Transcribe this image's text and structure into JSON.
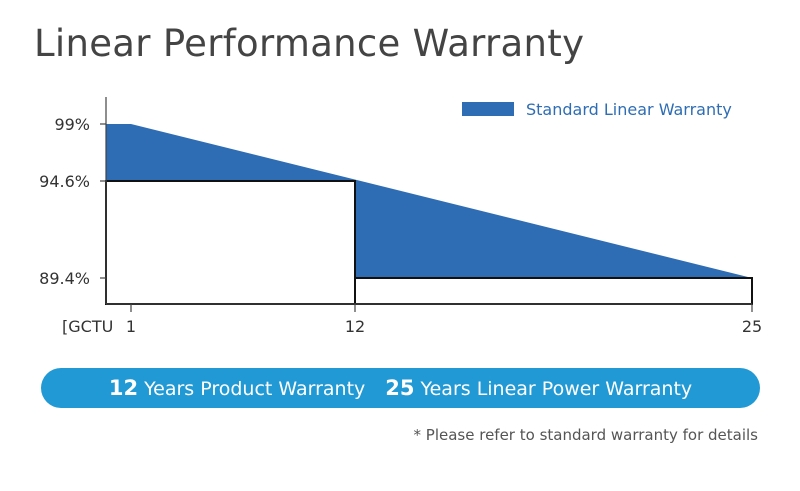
{
  "title": "Linear Performance Warranty",
  "chart_data": {
    "type": "area",
    "title": "Linear Performance Warranty",
    "series": [
      {
        "name": "Standard Linear Warranty",
        "color": "#2e6db4",
        "x": [
          0,
          1,
          25
        ],
        "y": [
          99,
          99,
          89.4
        ]
      }
    ],
    "product_warranty_box": {
      "x": [
        0,
        12
      ],
      "y_top": 94.6,
      "color": "#ffffff"
    },
    "power_warranty_box": {
      "x": [
        12,
        25
      ],
      "y_top": 89.4,
      "color": "#ffffff"
    },
    "y_ticks": [
      {
        "value": 99,
        "label": "99%"
      },
      {
        "value": 94.6,
        "label": "94.6%"
      },
      {
        "value": 89.4,
        "label": "89.4%"
      }
    ],
    "x_ticks": [
      {
        "value": 1,
        "label": "1"
      },
      {
        "value": 12,
        "label": "12"
      },
      {
        "value": 25,
        "label": "25"
      }
    ],
    "x_origin_label": "[GCTU",
    "legend_position": "top-right",
    "grid": false
  },
  "banner": {
    "product_years": "12",
    "product_text": "Years Product Warranty",
    "power_years": "25",
    "power_text": "Years Linear Power Warranty",
    "color": "#2199d5"
  },
  "footnote": "* Please refer to standard warranty for details"
}
